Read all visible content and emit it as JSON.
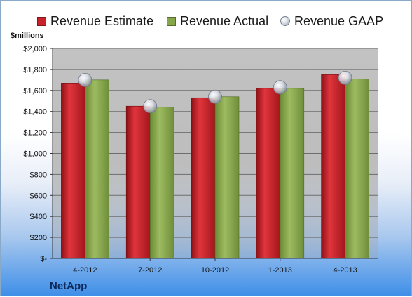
{
  "legend": {
    "estimate": "Revenue Estimate",
    "actual": "Revenue Actual",
    "gaap": "Revenue GAAP"
  },
  "unit_label": "$millions",
  "brand": "NetApp",
  "colors": {
    "estimate": "#c8232b",
    "actual": "#86a64a",
    "gaap": "#c9ced8",
    "plot_bg": "#c4c4c4",
    "grid": "#6e6e6e"
  },
  "chart_data": {
    "type": "bar",
    "categories": [
      "4-2012",
      "7-2012",
      "10-2012",
      "1-2013",
      "4-2013"
    ],
    "series": [
      {
        "name": "Revenue Estimate",
        "values": [
          1670,
          1450,
          1530,
          1620,
          1750
        ]
      },
      {
        "name": "Revenue Actual",
        "values": [
          1700,
          1440,
          1540,
          1620,
          1710
        ]
      },
      {
        "name": "Revenue GAAP",
        "type": "scatter",
        "values": [
          1700,
          1450,
          1540,
          1630,
          1720
        ]
      }
    ],
    "y_tick_labels": [
      "$-",
      "$200",
      "$400",
      "$600",
      "$800",
      "$1,000",
      "$1,200",
      "$1,400",
      "$1,600",
      "$1,800",
      "$2,000"
    ],
    "ylabel": "$millions",
    "ylim": [
      0,
      2000
    ],
    "grid": true,
    "legend_position": "top"
  }
}
